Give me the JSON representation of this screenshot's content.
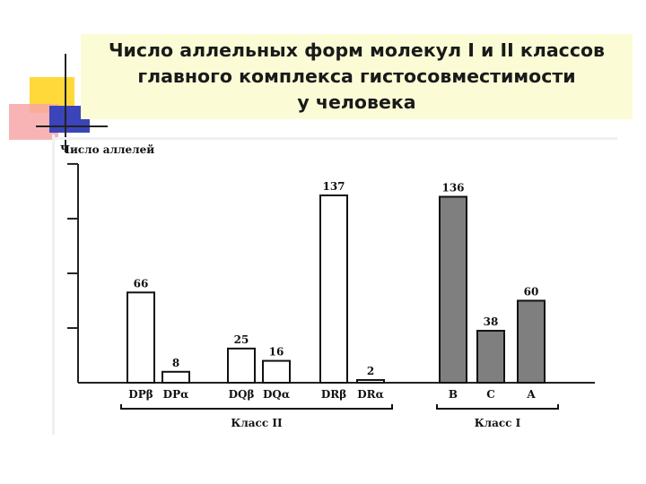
{
  "title_lines": [
    "Число аллельных форм молекул I и II классов",
    "главного комплекса гистосовместимости",
    "у человека"
  ],
  "colors": {
    "title_background": "#fbfcd6",
    "class_ii_bar": "#ffffff",
    "class_i_bar": "#7f7f7f",
    "axis": "#222222",
    "decor_yellow": "#ffd83a",
    "decor_pink": "#f7a7a7",
    "decor_blue": "#3b44b8"
  },
  "chart_data": {
    "type": "bar",
    "title": "",
    "ylabel": "Число аллелей",
    "xlabel": "",
    "ylim": [
      0,
      160
    ],
    "grid": false,
    "bars": [
      {
        "label": "DPβ",
        "value": 66,
        "group": "Класс II"
      },
      {
        "label": "DPα",
        "value": 8,
        "group": "Класс II"
      },
      {
        "label": "DQβ",
        "value": 25,
        "group": "Класс II"
      },
      {
        "label": "DQα",
        "value": 16,
        "group": "Класс II"
      },
      {
        "label": "DRβ",
        "value": 137,
        "group": "Класс II"
      },
      {
        "label": "DRα",
        "value": 2,
        "group": "Класс II"
      },
      {
        "label": "B",
        "value": 136,
        "group": "Класс I"
      },
      {
        "label": "C",
        "value": 38,
        "group": "Класс I"
      },
      {
        "label": "A",
        "value": 60,
        "group": "Класс I"
      }
    ],
    "groups": [
      "Класс II",
      "Класс I"
    ]
  }
}
